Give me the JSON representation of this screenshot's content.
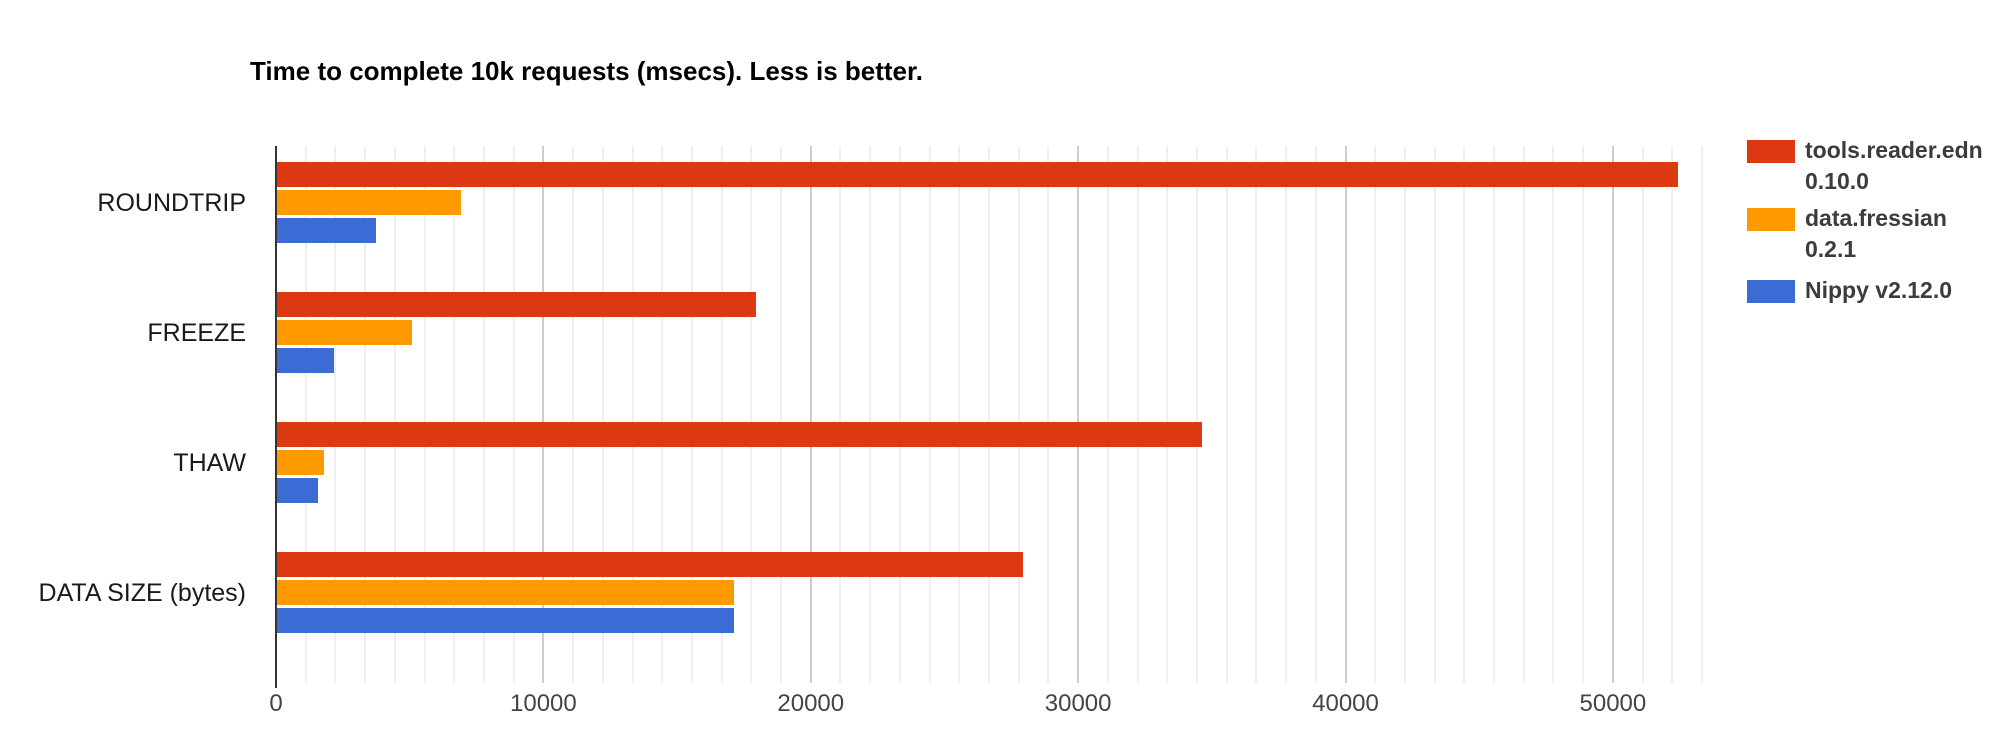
{
  "chart_data": {
    "type": "bar",
    "orientation": "horizontal",
    "title": "Time to complete 10k requests (msecs). Less is better.",
    "categories": [
      "ROUNDTRIP",
      "FREEZE",
      "THAW",
      "DATA SIZE (bytes)"
    ],
    "category_keys": [
      "roundtrip",
      "freeze",
      "thaw",
      "data-size-bytes"
    ],
    "series": [
      {
        "name": "tools.reader.edn 0.10.0",
        "key": "tools-reader-edn",
        "legend_lines": [
          "tools.reader.edn",
          "0.10.0"
        ],
        "color": "#DC3912",
        "values": [
          52400,
          17900,
          34600,
          27900
        ]
      },
      {
        "name": "data.fressian 0.2.1",
        "key": "data-fressian",
        "legend_lines": [
          "data.fressian",
          "0.2.1"
        ],
        "color": "#FF9900",
        "values": [
          6900,
          5050,
          1750,
          17100
        ]
      },
      {
        "name": "Nippy v2.12.0",
        "key": "nippy",
        "legend_lines": [
          "Nippy v2.12.0"
        ],
        "color": "#3B6BD5",
        "values": [
          3700,
          2130,
          1520,
          17100
        ]
      }
    ],
    "xlim": [
      0,
      53333
    ],
    "x_ticks": [
      0,
      10000,
      20000,
      30000,
      40000,
      50000
    ],
    "x_tick_labels": [
      "0",
      "10000",
      "20000",
      "30000",
      "40000",
      "50000"
    ],
    "minor_gridline_divisions": 9,
    "grid": true,
    "legend_position": "right",
    "xlabel": "",
    "ylabel": ""
  },
  "style_colors": {
    "background": "#FFFFFF",
    "axis_line": "#333333",
    "major_gridline": "#CCCCCC",
    "minor_gridline": "#EFEFEF",
    "tick_label": "#444444",
    "category_label": "#1A1A1A",
    "title": "#000000",
    "legend_text": "#3C3C3C"
  }
}
